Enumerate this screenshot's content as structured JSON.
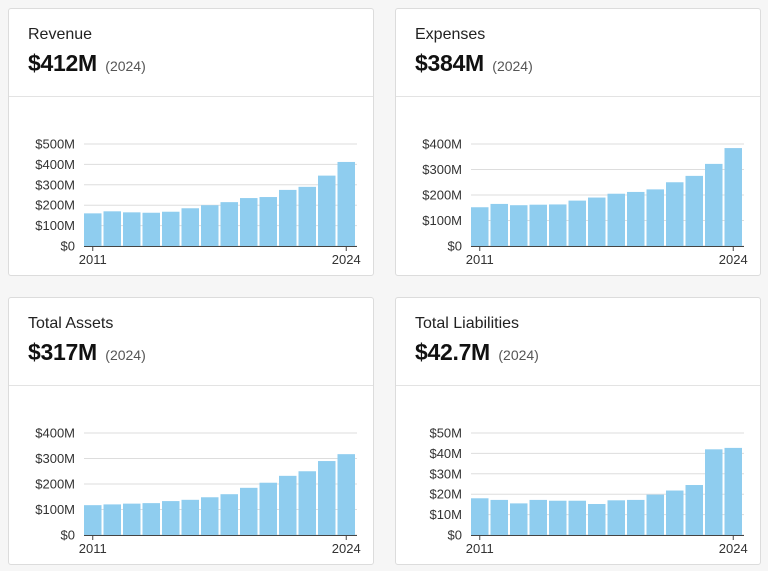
{
  "cards": [
    {
      "title": "Revenue",
      "value": "$412M",
      "year_note": "(2024)"
    },
    {
      "title": "Expenses",
      "value": "$384M",
      "year_note": "(2024)"
    },
    {
      "title": "Total Assets",
      "value": "$317M",
      "year_note": "(2024)"
    },
    {
      "title": "Total Liabilities",
      "value": "$42.7M",
      "year_note": "(2024)"
    }
  ],
  "colors": {
    "bar": "#8fcdef",
    "grid": "#dddddd",
    "axis": "#444444"
  },
  "chart_data": [
    {
      "type": "bar",
      "title": "Revenue",
      "xlabel": "",
      "ylabel": "",
      "x_tick_labels": [
        "2011",
        "2024"
      ],
      "categories": [
        "2011",
        "2012",
        "2013",
        "2014",
        "2015",
        "2016",
        "2017",
        "2018",
        "2019",
        "2020",
        "2021",
        "2022",
        "2023",
        "2024"
      ],
      "values": [
        160,
        170,
        165,
        163,
        168,
        185,
        200,
        215,
        235,
        240,
        275,
        290,
        345,
        412
      ],
      "ylim": [
        0,
        500
      ],
      "yticks": [
        0,
        100,
        200,
        300,
        400,
        500
      ],
      "ytick_labels": [
        "$0",
        "$100M",
        "$200M",
        "$300M",
        "$400M",
        "$500M"
      ],
      "grid": true,
      "legend": "none"
    },
    {
      "type": "bar",
      "title": "Expenses",
      "xlabel": "",
      "ylabel": "",
      "x_tick_labels": [
        "2011",
        "2024"
      ],
      "categories": [
        "2011",
        "2012",
        "2013",
        "2014",
        "2015",
        "2016",
        "2017",
        "2018",
        "2019",
        "2020",
        "2021",
        "2022",
        "2023",
        "2024"
      ],
      "values": [
        152,
        165,
        160,
        162,
        163,
        178,
        190,
        205,
        212,
        222,
        250,
        275,
        322,
        384
      ],
      "ylim": [
        0,
        400
      ],
      "yticks": [
        0,
        100,
        200,
        300,
        400
      ],
      "ytick_labels": [
        "$0",
        "$100M",
        "$200M",
        "$300M",
        "$400M"
      ],
      "grid": true,
      "legend": "none"
    },
    {
      "type": "bar",
      "title": "Total Assets",
      "xlabel": "",
      "ylabel": "",
      "x_tick_labels": [
        "2011",
        "2024"
      ],
      "categories": [
        "2011",
        "2012",
        "2013",
        "2014",
        "2015",
        "2016",
        "2017",
        "2018",
        "2019",
        "2020",
        "2021",
        "2022",
        "2023",
        "2024"
      ],
      "values": [
        117,
        120,
        123,
        125,
        133,
        138,
        148,
        160,
        185,
        205,
        232,
        250,
        290,
        317
      ],
      "ylim": [
        0,
        400
      ],
      "yticks": [
        0,
        100,
        200,
        300,
        400
      ],
      "ytick_labels": [
        "$0",
        "$100M",
        "$200M",
        "$300M",
        "$400M"
      ],
      "grid": true,
      "legend": "none"
    },
    {
      "type": "bar",
      "title": "Total Liabilities",
      "xlabel": "",
      "ylabel": "",
      "x_tick_labels": [
        "2011",
        "2024"
      ],
      "categories": [
        "2011",
        "2012",
        "2013",
        "2014",
        "2015",
        "2016",
        "2017",
        "2018",
        "2019",
        "2020",
        "2021",
        "2022",
        "2023",
        "2024"
      ],
      "values": [
        18,
        17.2,
        15.5,
        17.2,
        16.8,
        16.8,
        15.2,
        17,
        17.2,
        19.8,
        21.8,
        24.5,
        42,
        42.7
      ],
      "ylim": [
        0,
        50
      ],
      "yticks": [
        0,
        10,
        20,
        30,
        40,
        50
      ],
      "ytick_labels": [
        "$0",
        "$10M",
        "$20M",
        "$30M",
        "$40M",
        "$50M"
      ],
      "grid": true,
      "legend": "none"
    }
  ]
}
